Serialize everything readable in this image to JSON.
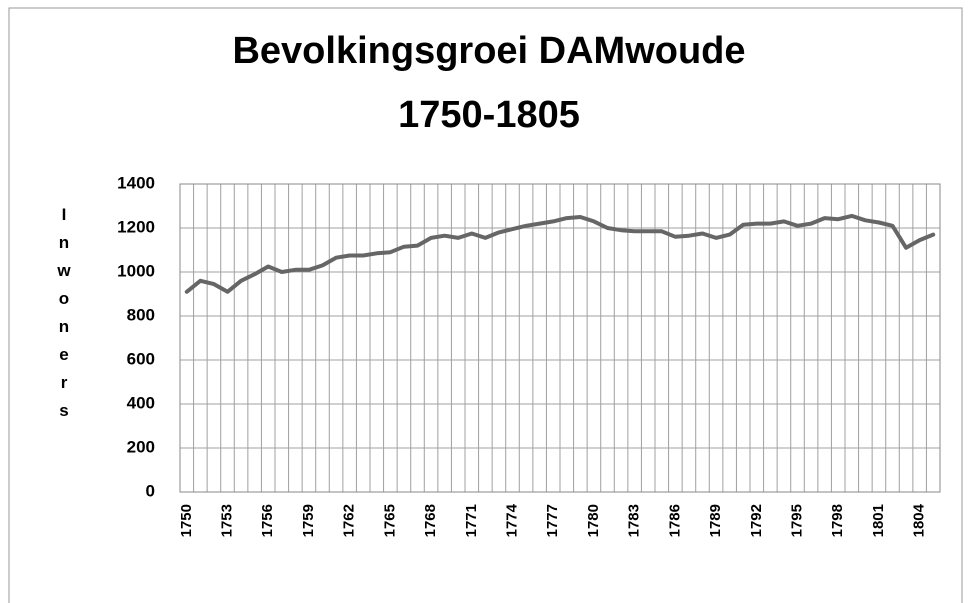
{
  "chart_data": {
    "type": "line",
    "title": [
      "Bevolkingsgroei DAMwoude",
      "1750-1805"
    ],
    "y_label": "Inwoners",
    "categories": [
      "1750",
      null,
      null,
      "1753",
      null,
      null,
      "1756",
      null,
      null,
      "1759",
      null,
      null,
      "1762",
      null,
      null,
      "1765",
      null,
      null,
      "1768",
      null,
      null,
      "1771",
      null,
      null,
      "1774",
      null,
      null,
      "1777",
      null,
      null,
      "1780",
      null,
      null,
      "1783",
      null,
      null,
      "1786",
      null,
      null,
      "1789",
      null,
      null,
      "1792",
      null,
      null,
      "1795",
      null,
      null,
      "1798",
      null,
      null,
      "1801",
      null,
      null,
      "1804",
      null
    ],
    "values": [
      910,
      960,
      945,
      910,
      960,
      990,
      1025,
      1000,
      1010,
      1010,
      1030,
      1065,
      1075,
      1075,
      1085,
      1090,
      1115,
      1120,
      1155,
      1165,
      1155,
      1175,
      1155,
      1180,
      1195,
      1210,
      1220,
      1230,
      1245,
      1250,
      1230,
      1200,
      1190,
      1185,
      1185,
      1185,
      1160,
      1165,
      1175,
      1155,
      1170,
      1215,
      1220,
      1220,
      1230,
      1210,
      1220,
      1245,
      1240,
      1255,
      1235,
      1225,
      1210,
      1110,
      1145,
      1170
    ],
    "color": "#666666",
    "ylim": [
      0,
      1400
    ],
    "yticks": [
      0,
      200,
      400,
      600,
      800,
      1000,
      1200,
      1400
    ],
    "grid": true
  }
}
